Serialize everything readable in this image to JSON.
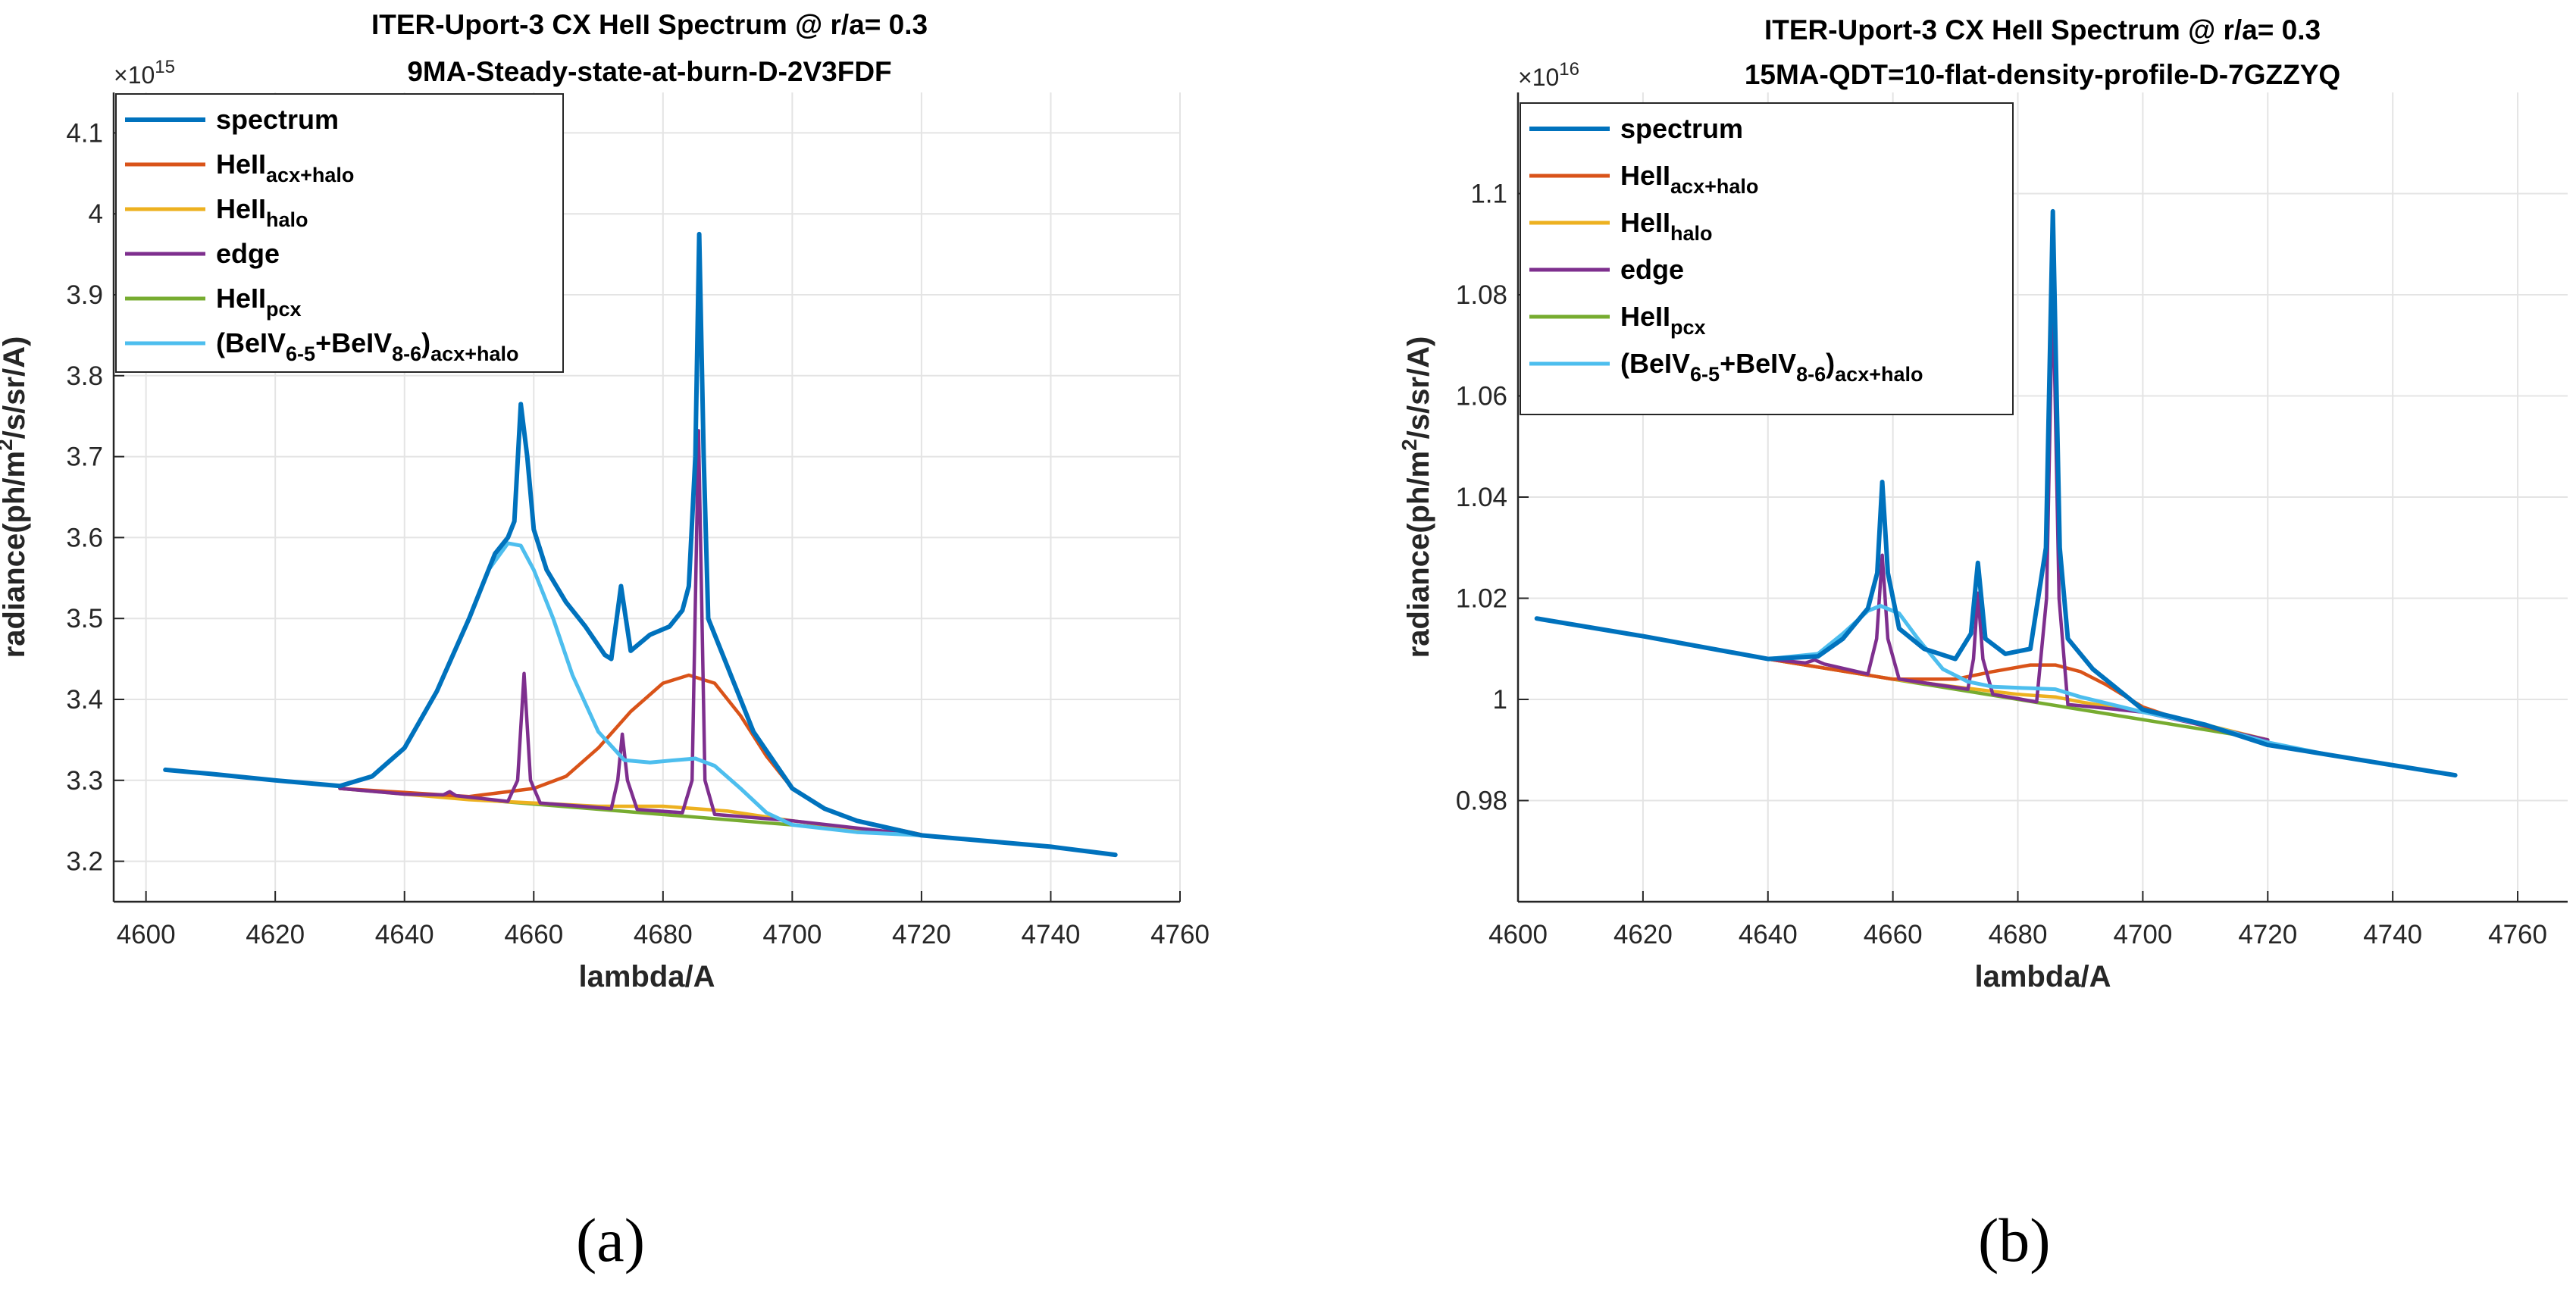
{
  "colors": {
    "spectrum": "#0072BD",
    "acx_halo": "#D95319",
    "halo": "#EDB120",
    "edge": "#7E2F8E",
    "pcx": "#77AC30",
    "beiv": "#4DBEEE"
  },
  "captions": [
    "(a)",
    "(b)"
  ],
  "chart_data": [
    {
      "type": "line",
      "title": "ITER-Uport-3 CX HeII Spectrum @ r/a= 0.3",
      "subtitle": "9MA-Steady-state-at-burn-D-2V3FDF",
      "xlabel": "lambda/A",
      "ylabel_parts": [
        "radiance(ph/m",
        "2",
        "/s/sr/A)"
      ],
      "exponent_label": "×10",
      "exponent_power": "15",
      "xlim": [
        4595,
        4760
      ],
      "ylim": [
        3.15,
        4.15
      ],
      "xticks": [
        4600,
        4620,
        4640,
        4660,
        4680,
        4700,
        4720,
        4740,
        4760
      ],
      "xtick_labels": [
        "4600",
        "4620",
        "4640",
        "4660",
        "4680",
        "4700",
        "4720",
        "4740",
        "4760"
      ],
      "yticks": [
        3.2,
        3.3,
        3.4,
        3.5,
        3.6,
        3.7,
        3.8,
        3.9,
        4.0,
        4.1
      ],
      "ytick_labels": [
        "3.2",
        "3.3",
        "3.4",
        "3.5",
        "3.6",
        "3.7",
        "3.8",
        "3.9",
        "4",
        "4.1"
      ],
      "grid": true,
      "legend_position": "top-left",
      "legend": [
        {
          "key": "spectrum",
          "base": "spectrum"
        },
        {
          "key": "acx_halo",
          "base": "HeII",
          "sub": "acx+halo"
        },
        {
          "key": "halo",
          "base": "HeII",
          "sub": "halo"
        },
        {
          "key": "edge",
          "base": "edge"
        },
        {
          "key": "pcx",
          "base": "HeII",
          "sub": "pcx"
        },
        {
          "key": "beiv",
          "base": "(BeIV",
          "sub1": "6-5",
          "mid": "+BeIV",
          "sub2": "8-6",
          "end": ")",
          "sub3": "acx+halo"
        }
      ],
      "series": [
        {
          "key": "spectrum",
          "points": [
            [
              4603,
              3.313
            ],
            [
              4610,
              3.308
            ],
            [
              4620,
              3.3
            ],
            [
              4630,
              3.293
            ],
            [
              4635,
              3.305
            ],
            [
              4640,
              3.34
            ],
            [
              4645,
              3.41
            ],
            [
              4650,
              3.5
            ],
            [
              4654,
              3.58
            ],
            [
              4656,
              3.6
            ],
            [
              4657,
              3.62
            ],
            [
              4658,
              3.765
            ],
            [
              4659,
              3.7
            ],
            [
              4660,
              3.61
            ],
            [
              4662,
              3.56
            ],
            [
              4665,
              3.52
            ],
            [
              4668,
              3.49
            ],
            [
              4671,
              3.455
            ],
            [
              4672,
              3.45
            ],
            [
              4673.5,
              3.54
            ],
            [
              4675,
              3.46
            ],
            [
              4678,
              3.48
            ],
            [
              4681,
              3.49
            ],
            [
              4683,
              3.51
            ],
            [
              4684,
              3.54
            ],
            [
              4685,
              3.7
            ],
            [
              4685.6,
              3.975
            ],
            [
              4686.3,
              3.7
            ],
            [
              4687,
              3.5
            ],
            [
              4690,
              3.44
            ],
            [
              4694,
              3.36
            ],
            [
              4700,
              3.29
            ],
            [
              4705,
              3.265
            ],
            [
              4710,
              3.25
            ],
            [
              4720,
              3.232
            ],
            [
              4730,
              3.225
            ],
            [
              4740,
              3.218
            ],
            [
              4750,
              3.208
            ]
          ]
        },
        {
          "key": "acx_halo",
          "points": [
            [
              4630,
              3.29
            ],
            [
              4640,
              3.285
            ],
            [
              4650,
              3.28
            ],
            [
              4660,
              3.29
            ],
            [
              4665,
              3.305
            ],
            [
              4670,
              3.34
            ],
            [
              4675,
              3.385
            ],
            [
              4680,
              3.42
            ],
            [
              4684,
              3.43
            ],
            [
              4688,
              3.42
            ],
            [
              4692,
              3.38
            ],
            [
              4696,
              3.33
            ],
            [
              4700,
              3.29
            ],
            [
              4705,
              3.265
            ],
            [
              4710,
              3.25
            ],
            [
              4720,
              3.233
            ]
          ]
        },
        {
          "key": "halo",
          "points": [
            [
              4630,
              3.29
            ],
            [
              4650,
              3.276
            ],
            [
              4670,
              3.268
            ],
            [
              4680,
              3.268
            ],
            [
              4690,
              3.262
            ],
            [
              4700,
              3.25
            ],
            [
              4710,
              3.24
            ],
            [
              4720,
              3.232
            ]
          ]
        },
        {
          "key": "edge",
          "points": [
            [
              4630,
              3.29
            ],
            [
              4640,
              3.283
            ],
            [
              4646,
              3.282
            ],
            [
              4647,
              3.286
            ],
            [
              4648,
              3.281
            ],
            [
              4656,
              3.274
            ],
            [
              4657.5,
              3.3
            ],
            [
              4658.5,
              3.432
            ],
            [
              4659.5,
              3.3
            ],
            [
              4661,
              3.272
            ],
            [
              4672,
              3.265
            ],
            [
              4673,
              3.3
            ],
            [
              4673.7,
              3.357
            ],
            [
              4674.5,
              3.3
            ],
            [
              4676,
              3.264
            ],
            [
              4683,
              3.26
            ],
            [
              4684.5,
              3.3
            ],
            [
              4685.5,
              3.732
            ],
            [
              4686.5,
              3.3
            ],
            [
              4688,
              3.258
            ],
            [
              4700,
              3.25
            ],
            [
              4720,
              3.232
            ]
          ]
        },
        {
          "key": "pcx",
          "points": [
            [
              4630,
              3.29
            ],
            [
              4720,
              3.232
            ]
          ]
        },
        {
          "key": "beiv",
          "points": [
            [
              4603,
              3.313
            ],
            [
              4610,
              3.308
            ],
            [
              4620,
              3.3
            ],
            [
              4630,
              3.293
            ],
            [
              4635,
              3.305
            ],
            [
              4640,
              3.34
            ],
            [
              4645,
              3.41
            ],
            [
              4650,
              3.5
            ],
            [
              4653,
              3.56
            ],
            [
              4656,
              3.593
            ],
            [
              4658,
              3.59
            ],
            [
              4660,
              3.56
            ],
            [
              4663,
              3.5
            ],
            [
              4666,
              3.43
            ],
            [
              4670,
              3.36
            ],
            [
              4674,
              3.325
            ],
            [
              4678,
              3.322
            ],
            [
              4682,
              3.325
            ],
            [
              4685,
              3.327
            ],
            [
              4688,
              3.318
            ],
            [
              4692,
              3.29
            ],
            [
              4696,
              3.26
            ],
            [
              4700,
              3.245
            ],
            [
              4710,
              3.236
            ],
            [
              4720,
              3.232
            ],
            [
              4730,
              3.225
            ],
            [
              4740,
              3.218
            ],
            [
              4750,
              3.208
            ]
          ]
        }
      ]
    },
    {
      "type": "line",
      "title": "ITER-Uport-3 CX HeII Spectrum @ r/a= 0.3",
      "subtitle": "15MA-QDT=10-flat-density-profile-D-7GZZYQ",
      "xlabel": "lambda/A",
      "ylabel_parts": [
        "radiance(ph/m",
        "2",
        "/s/sr/A)"
      ],
      "exponent_label": "×10",
      "exponent_power": "16",
      "xlim": [
        4600,
        4768
      ],
      "ylim": [
        0.96,
        1.12
      ],
      "xticks": [
        4600,
        4620,
        4640,
        4660,
        4680,
        4700,
        4720,
        4740,
        4760
      ],
      "xtick_labels": [
        "4600",
        "4620",
        "4640",
        "4660",
        "4680",
        "4700",
        "4720",
        "4740",
        "4760"
      ],
      "yticks": [
        0.98,
        1.0,
        1.02,
        1.04,
        1.06,
        1.08,
        1.1
      ],
      "ytick_labels": [
        "0.98",
        "1",
        "1.02",
        "1.04",
        "1.06",
        "1.08",
        "1.1"
      ],
      "grid": true,
      "legend_position": "top-left",
      "legend": [
        {
          "key": "spectrum",
          "base": "spectrum"
        },
        {
          "key": "acx_halo",
          "base": "HeII",
          "sub": "acx+halo"
        },
        {
          "key": "halo",
          "base": "HeII",
          "sub": "halo"
        },
        {
          "key": "edge",
          "base": "edge"
        },
        {
          "key": "pcx",
          "base": "HeII",
          "sub": "pcx"
        },
        {
          "key": "beiv",
          "base": "(BeIV",
          "sub1": "6-5",
          "mid": "+BeIV",
          "sub2": "8-6",
          "end": ")",
          "sub3": "acx+halo"
        }
      ],
      "series": [
        {
          "key": "spectrum",
          "points": [
            [
              4603,
              1.016
            ],
            [
              4620,
              1.0125
            ],
            [
              4640,
              1.008
            ],
            [
              4648,
              1.0085
            ],
            [
              4652,
              1.012
            ],
            [
              4656,
              1.018
            ],
            [
              4657.5,
              1.025
            ],
            [
              4658.3,
              1.043
            ],
            [
              4659.2,
              1.025
            ],
            [
              4661,
              1.014
            ],
            [
              4665,
              1.01
            ],
            [
              4670,
              1.008
            ],
            [
              4672.5,
              1.013
            ],
            [
              4673.6,
              1.027
            ],
            [
              4674.8,
              1.012
            ],
            [
              4678,
              1.009
            ],
            [
              4682,
              1.01
            ],
            [
              4684.5,
              1.03
            ],
            [
              4685.6,
              1.0965
            ],
            [
              4686.7,
              1.03
            ],
            [
              4688,
              1.012
            ],
            [
              4692,
              1.006
            ],
            [
              4700,
              0.998
            ],
            [
              4710,
              0.995
            ],
            [
              4720,
              0.991
            ],
            [
              4730,
              0.989
            ],
            [
              4740,
              0.987
            ],
            [
              4750,
              0.985
            ]
          ]
        },
        {
          "key": "acx_halo",
          "points": [
            [
              4640,
              1.008
            ],
            [
              4650,
              1.006
            ],
            [
              4660,
              1.004
            ],
            [
              4670,
              1.004
            ],
            [
              4676,
              1.0055
            ],
            [
              4682,
              1.0068
            ],
            [
              4686,
              1.0068
            ],
            [
              4690,
              1.0055
            ],
            [
              4694,
              1.003
            ],
            [
              4700,
              0.9985
            ],
            [
              4706,
              0.996
            ],
            [
              4712,
              0.994
            ],
            [
              4720,
              0.992
            ]
          ]
        },
        {
          "key": "halo",
          "points": [
            [
              4640,
              1.008
            ],
            [
              4660,
              1.004
            ],
            [
              4670,
              1.0025
            ],
            [
              4680,
              1.001
            ],
            [
              4686,
              1.0005
            ],
            [
              4690,
              0.9995
            ],
            [
              4700,
              0.9975
            ],
            [
              4710,
              0.995
            ],
            [
              4720,
              0.992
            ]
          ]
        },
        {
          "key": "edge",
          "points": [
            [
              4640,
              1.008
            ],
            [
              4646,
              1.0072
            ],
            [
              4647.5,
              1.0078
            ],
            [
              4649,
              1.007
            ],
            [
              4656,
              1.005
            ],
            [
              4657.4,
              1.012
            ],
            [
              4658.3,
              1.0285
            ],
            [
              4659.2,
              1.012
            ],
            [
              4661,
              1.004
            ],
            [
              4672,
              1.002
            ],
            [
              4672.9,
              1.008
            ],
            [
              4673.6,
              1.021
            ],
            [
              4674.4,
              1.008
            ],
            [
              4676,
              1.001
            ],
            [
              4683,
              0.9995
            ],
            [
              4684.6,
              1.02
            ],
            [
              4685.6,
              1.083
            ],
            [
              4686.6,
              1.02
            ],
            [
              4688,
              0.999
            ],
            [
              4700,
              0.9975
            ],
            [
              4720,
              0.992
            ]
          ]
        },
        {
          "key": "pcx",
          "points": [
            [
              4640,
              1.008
            ],
            [
              4720,
              0.992
            ]
          ]
        },
        {
          "key": "beiv",
          "points": [
            [
              4603,
              1.016
            ],
            [
              4620,
              1.0125
            ],
            [
              4640,
              1.008
            ],
            [
              4648,
              1.009
            ],
            [
              4652,
              1.013
            ],
            [
              4656,
              1.0175
            ],
            [
              4658,
              1.0185
            ],
            [
              4661,
              1.017
            ],
            [
              4664,
              1.012
            ],
            [
              4668,
              1.006
            ],
            [
              4672,
              1.0035
            ],
            [
              4676,
              1.0025
            ],
            [
              4682,
              1.0022
            ],
            [
              4686,
              1.002
            ],
            [
              4690,
              1.0005
            ],
            [
              4700,
              0.9975
            ],
            [
              4710,
              0.995
            ],
            [
              4720,
              0.9915
            ],
            [
              4730,
              0.989
            ],
            [
              4740,
              0.987
            ],
            [
              4750,
              0.985
            ]
          ]
        }
      ]
    }
  ]
}
